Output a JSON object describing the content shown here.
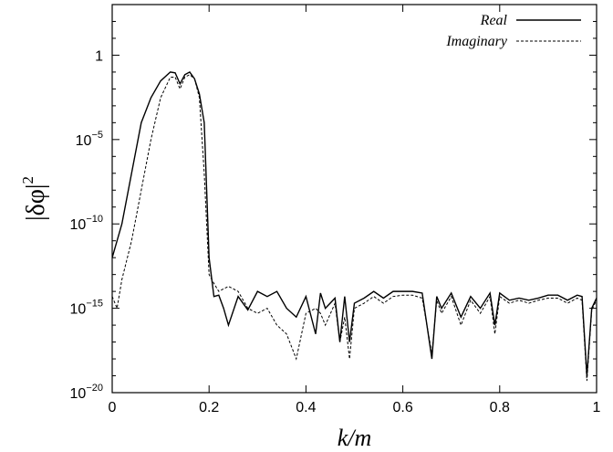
{
  "chart_data": {
    "type": "line",
    "xlabel": "k/m",
    "ylabel": "|δφ|",
    "ylabel_superscript": "2",
    "xlim": [
      0,
      1
    ],
    "ylim_log10": [
      -20,
      3
    ],
    "yscale": "log",
    "grid": false,
    "legend_position": "top-right",
    "x_ticks": [
      "0",
      "0.2",
      "0.4",
      "0.6",
      "0.8",
      "1"
    ],
    "y_ticks": [
      {
        "value": 1,
        "base": "1",
        "exp": ""
      },
      {
        "value": 1e-05,
        "base": "10",
        "exp": "−5"
      },
      {
        "value": 1e-10,
        "base": "10",
        "exp": "−10"
      },
      {
        "value": 1e-15,
        "base": "10",
        "exp": "−15"
      },
      {
        "value": 1e-20,
        "base": "10",
        "exp": "−20"
      }
    ],
    "series": [
      {
        "name": "Real",
        "style": "solid",
        "x": [
          0,
          0.02,
          0.04,
          0.06,
          0.08,
          0.1,
          0.12,
          0.13,
          0.14,
          0.15,
          0.16,
          0.17,
          0.18,
          0.19,
          0.2,
          0.21,
          0.22,
          0.23,
          0.24,
          0.26,
          0.28,
          0.3,
          0.32,
          0.34,
          0.36,
          0.38,
          0.4,
          0.42,
          0.43,
          0.44,
          0.46,
          0.47,
          0.48,
          0.49,
          0.5,
          0.52,
          0.54,
          0.56,
          0.58,
          0.6,
          0.62,
          0.64,
          0.66,
          0.67,
          0.68,
          0.7,
          0.72,
          0.74,
          0.76,
          0.78,
          0.79,
          0.8,
          0.82,
          0.84,
          0.86,
          0.88,
          0.9,
          0.92,
          0.94,
          0.96,
          0.97,
          0.98,
          0.99,
          1.0
        ],
        "y": [
          1e-12,
          1e-10,
          1e-07,
          0.0001,
          0.003,
          0.03,
          0.1,
          0.09,
          0.02,
          0.07,
          0.1,
          0.04,
          0.005,
          0.0001,
          1e-12,
          5e-15,
          6e-15,
          1e-15,
          1e-16,
          5e-15,
          8e-16,
          1e-14,
          5e-15,
          1e-14,
          1e-15,
          3e-16,
          5e-15,
          3e-17,
          8e-15,
          1e-15,
          4e-15,
          1e-17,
          5e-15,
          1e-17,
          2e-15,
          4e-15,
          1e-14,
          4e-15,
          1e-14,
          1e-14,
          1e-14,
          8e-15,
          1e-18,
          5e-15,
          1e-15,
          8e-15,
          3e-16,
          5e-15,
          1e-15,
          8e-15,
          1e-16,
          8e-15,
          3e-15,
          4e-15,
          3e-15,
          4e-15,
          6e-15,
          6e-15,
          3e-15,
          6e-15,
          5e-15,
          1e-19,
          1e-15,
          4e-15
        ]
      },
      {
        "name": "Imaginary",
        "style": "dashed",
        "x": [
          0,
          0.01,
          0.02,
          0.04,
          0.06,
          0.08,
          0.1,
          0.12,
          0.13,
          0.14,
          0.15,
          0.16,
          0.17,
          0.18,
          0.19,
          0.2,
          0.21,
          0.22,
          0.24,
          0.26,
          0.28,
          0.3,
          0.32,
          0.34,
          0.36,
          0.38,
          0.4,
          0.42,
          0.43,
          0.44,
          0.46,
          0.47,
          0.48,
          0.49,
          0.5,
          0.52,
          0.54,
          0.56,
          0.58,
          0.6,
          0.62,
          0.64,
          0.66,
          0.67,
          0.68,
          0.7,
          0.72,
          0.74,
          0.76,
          0.78,
          0.79,
          0.8,
          0.82,
          0.84,
          0.86,
          0.88,
          0.9,
          0.92,
          0.94,
          0.96,
          0.97,
          0.98,
          0.99,
          1.0
        ],
        "y": [
          5e-15,
          1e-15,
          5e-14,
          1e-11,
          1e-08,
          1e-05,
          0.003,
          0.05,
          0.05,
          0.01,
          0.05,
          0.07,
          0.04,
          0.003,
          1e-07,
          1e-13,
          3e-14,
          1e-14,
          2e-14,
          1e-14,
          1e-15,
          5e-16,
          1e-15,
          1e-16,
          3e-17,
          1e-18,
          5e-16,
          1e-15,
          5e-16,
          1e-16,
          2e-15,
          1e-17,
          3e-16,
          1e-18,
          1e-15,
          2e-15,
          5e-15,
          2e-15,
          5e-15,
          6e-15,
          6e-15,
          4e-15,
          2e-18,
          3e-15,
          5e-16,
          5e-15,
          1e-16,
          3e-15,
          5e-16,
          5e-15,
          3e-17,
          5e-15,
          2e-15,
          3e-15,
          2e-15,
          3e-15,
          4e-15,
          4e-15,
          2e-15,
          4e-15,
          3e-15,
          5e-20,
          8e-16,
          3e-15
        ]
      }
    ]
  }
}
